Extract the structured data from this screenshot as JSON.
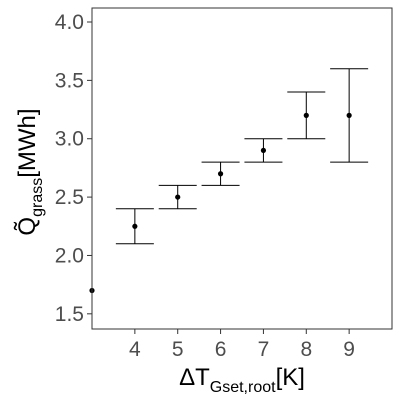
{
  "chart_data": {
    "type": "scatter",
    "subtype": "errorbar",
    "x": [
      3,
      4,
      5,
      6,
      7,
      8,
      9
    ],
    "y": [
      1.7,
      2.25,
      2.5,
      2.7,
      2.9,
      3.2,
      3.2
    ],
    "ymin": [
      null,
      2.1,
      2.4,
      2.6,
      2.8,
      3.0,
      2.8
    ],
    "ymax": [
      null,
      2.4,
      2.6,
      2.8,
      3.0,
      3.4,
      3.6
    ],
    "xlim": [
      3,
      10
    ],
    "ylim": [
      1.37,
      4.12
    ],
    "xticks": [
      4,
      5,
      6,
      7,
      8,
      9
    ],
    "yticks": [
      1.5,
      2.0,
      2.5,
      3.0,
      3.5,
      4.0
    ],
    "xtick_labels": [
      "4",
      "5",
      "6",
      "7",
      "8",
      "9"
    ],
    "ytick_labels": [
      "1.5",
      "2.0",
      "2.5",
      "3.0",
      "3.5",
      "4.0"
    ],
    "xlabel": {
      "prefix": "ΔT",
      "subscript": "Gset,root",
      "unit": "[K]"
    },
    "ylabel": {
      "prefix": "Q̃",
      "subscript": "grass",
      "unit": "[MWh]"
    },
    "grid": false,
    "legend": "none",
    "colors": {
      "points": "#000000",
      "axis": "#333333",
      "tick_text": "#4d4d4d"
    }
  }
}
